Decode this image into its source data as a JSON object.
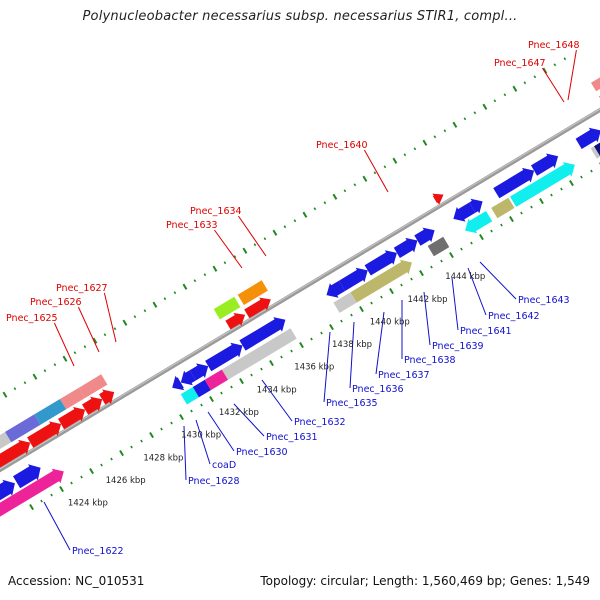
{
  "title": "Polynucleobacter necessarius subsp. necessarius STIR1, compl...",
  "footer": {
    "accession": "Accession: NC_010531",
    "topology": "Topology: circular; Length: 1,560,469 bp; Genes: 1,549"
  },
  "colors": {
    "backbone": "#999999",
    "scale_ticks": "#1f8a1f",
    "label_red": "#dd0000",
    "label_blue": "#1010cc"
  },
  "scale_labels": [
    "1424 kbp",
    "1426 kbp",
    "1428 kbp",
    "1430 kbp",
    "1432 kbp",
    "1434 kbp",
    "1436 kbp",
    "1438 kbp",
    "1440 kbp",
    "1442 kbp",
    "1444 kbp"
  ],
  "top_labels": [
    "Pnec_1625",
    "Pnec_1626",
    "Pnec_1627",
    "Pnec_1633",
    "Pnec_1634",
    "Pnec_1640",
    "Pnec_1647",
    "Pnec_1648"
  ],
  "bottom_labels": [
    "Pnec_1622",
    "Pnec_1628",
    "coaD",
    "Pnec_1630",
    "Pnec_1631",
    "Pnec_1632",
    "Pnec_1635",
    "Pnec_1636",
    "Pnec_1637",
    "Pnec_1638",
    "Pnec_1639",
    "Pnec_1641",
    "Pnec_1642",
    "Pnec_1643"
  ]
}
